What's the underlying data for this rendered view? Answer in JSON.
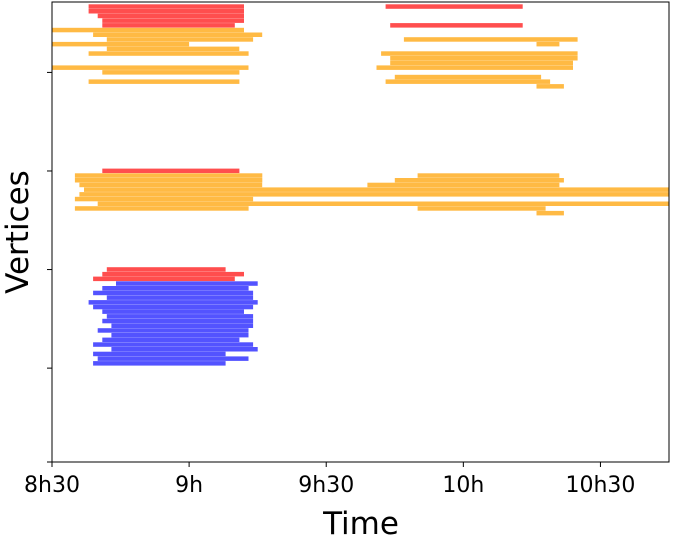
{
  "chart_data": {
    "type": "bar",
    "orientation": "horizontal-intervals",
    "xlabel": "Time",
    "ylabel": "Vertices",
    "x_unit": "minutes",
    "xlim": [
      510,
      645
    ],
    "ylim": [
      0,
      98
    ],
    "x_ticks": [
      {
        "value": 510,
        "label": "8h30"
      },
      {
        "value": 540,
        "label": "9h"
      },
      {
        "value": 570,
        "label": "9h30"
      },
      {
        "value": 600,
        "label": "10h"
      },
      {
        "value": 630,
        "label": "10h30"
      }
    ],
    "y_ticks": [
      0,
      20,
      41,
      62,
      83
    ],
    "grid": false,
    "colors": {
      "red": "#ff3b3b",
      "orange": "#ffb330",
      "blue": "#4040ff"
    },
    "series": [
      {
        "color": "red",
        "intervals": [
          {
            "y": 97,
            "start": 518,
            "end": 552
          },
          {
            "y": 96,
            "start": 518,
            "end": 552
          },
          {
            "y": 95,
            "start": 520,
            "end": 552
          },
          {
            "y": 94,
            "start": 521,
            "end": 552
          },
          {
            "y": 93,
            "start": 521,
            "end": 550
          },
          {
            "y": 97,
            "start": 583,
            "end": 613
          },
          {
            "y": 93,
            "start": 584,
            "end": 613
          },
          {
            "y": 62,
            "start": 521,
            "end": 551
          },
          {
            "y": 41,
            "start": 522,
            "end": 548
          },
          {
            "y": 40,
            "start": 521,
            "end": 552
          },
          {
            "y": 39,
            "start": 519,
            "end": 550
          }
        ]
      },
      {
        "color": "orange",
        "intervals": [
          {
            "y": 92,
            "start": 510,
            "end": 552
          },
          {
            "y": 91,
            "start": 519,
            "end": 556
          },
          {
            "y": 90,
            "start": 522,
            "end": 554
          },
          {
            "y": 89,
            "start": 510,
            "end": 540
          },
          {
            "y": 88,
            "start": 522,
            "end": 551
          },
          {
            "y": 87,
            "start": 518,
            "end": 553
          },
          {
            "y": 90,
            "start": 587,
            "end": 625
          },
          {
            "y": 89,
            "start": 616,
            "end": 621
          },
          {
            "y": 87,
            "start": 582,
            "end": 625
          },
          {
            "y": 86,
            "start": 584,
            "end": 625
          },
          {
            "y": 85,
            "start": 584,
            "end": 624
          },
          {
            "y": 84,
            "start": 581,
            "end": 624
          },
          {
            "y": 84,
            "start": 510,
            "end": 553
          },
          {
            "y": 83,
            "start": 521,
            "end": 551
          },
          {
            "y": 82,
            "start": 585,
            "end": 617
          },
          {
            "y": 81,
            "start": 518,
            "end": 551
          },
          {
            "y": 81,
            "start": 583,
            "end": 619
          },
          {
            "y": 80,
            "start": 616,
            "end": 622
          },
          {
            "y": 61,
            "start": 515,
            "end": 556
          },
          {
            "y": 60,
            "start": 515,
            "end": 556
          },
          {
            "y": 59,
            "start": 516,
            "end": 556
          },
          {
            "y": 58,
            "start": 517,
            "end": 645
          },
          {
            "y": 57,
            "start": 516,
            "end": 645
          },
          {
            "y": 56,
            "start": 515,
            "end": 554
          },
          {
            "y": 55,
            "start": 520,
            "end": 645
          },
          {
            "y": 54,
            "start": 515,
            "end": 553
          },
          {
            "y": 61,
            "start": 590,
            "end": 621
          },
          {
            "y": 60,
            "start": 585,
            "end": 622
          },
          {
            "y": 59,
            "start": 579,
            "end": 621
          },
          {
            "y": 54,
            "start": 590,
            "end": 618
          },
          {
            "y": 53,
            "start": 616,
            "end": 622
          }
        ]
      },
      {
        "color": "blue",
        "intervals": [
          {
            "y": 38,
            "start": 524,
            "end": 555
          },
          {
            "y": 37,
            "start": 521,
            "end": 553
          },
          {
            "y": 36,
            "start": 519,
            "end": 554
          },
          {
            "y": 35,
            "start": 522,
            "end": 554
          },
          {
            "y": 34,
            "start": 518,
            "end": 555
          },
          {
            "y": 33,
            "start": 519,
            "end": 554
          },
          {
            "y": 32,
            "start": 521,
            "end": 552
          },
          {
            "y": 31,
            "start": 522,
            "end": 554
          },
          {
            "y": 30,
            "start": 521,
            "end": 554
          },
          {
            "y": 29,
            "start": 523,
            "end": 554
          },
          {
            "y": 28,
            "start": 520,
            "end": 553
          },
          {
            "y": 27,
            "start": 523,
            "end": 553
          },
          {
            "y": 26,
            "start": 521,
            "end": 551
          },
          {
            "y": 25,
            "start": 519,
            "end": 554
          },
          {
            "y": 24,
            "start": 523,
            "end": 555
          },
          {
            "y": 23,
            "start": 519,
            "end": 548
          },
          {
            "y": 22,
            "start": 520,
            "end": 553
          },
          {
            "y": 21,
            "start": 519,
            "end": 548
          }
        ]
      }
    ]
  }
}
